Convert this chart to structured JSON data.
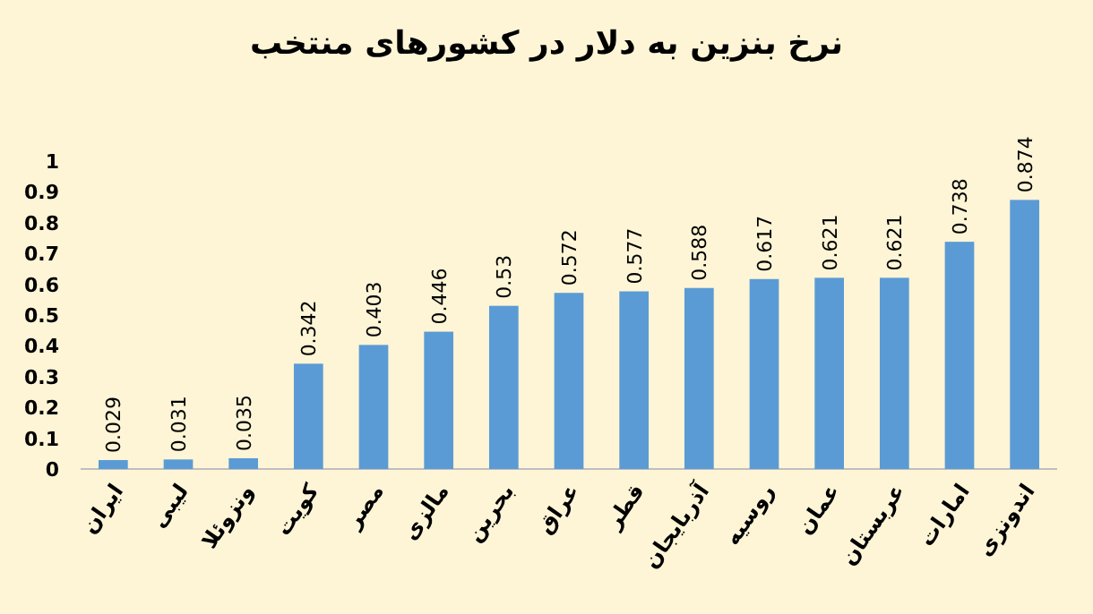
{
  "chart_data": {
    "type": "bar",
    "title": "نرخ بنزین به دلار در کشورهای منتخب",
    "categories": [
      "ایران",
      "لیبی",
      "ونزوئلا",
      "کویت",
      "مصر",
      "مالزی",
      "بحرین",
      "عراق",
      "قطر",
      "آذربایجان",
      "روسیه",
      "عمان",
      "عربستان",
      "امارات",
      "اندونزی"
    ],
    "values": [
      0.029,
      0.031,
      0.035,
      0.342,
      0.403,
      0.446,
      0.53,
      0.572,
      0.577,
      0.588,
      0.617,
      0.621,
      0.621,
      0.738,
      0.874
    ],
    "color": "#5b9bd5",
    "ylim": [
      0,
      1
    ],
    "yticks": [
      0,
      0.1,
      0.2,
      0.3,
      0.4,
      0.5,
      0.6,
      0.7,
      0.8,
      0.9,
      1
    ],
    "data_labels": true
  }
}
